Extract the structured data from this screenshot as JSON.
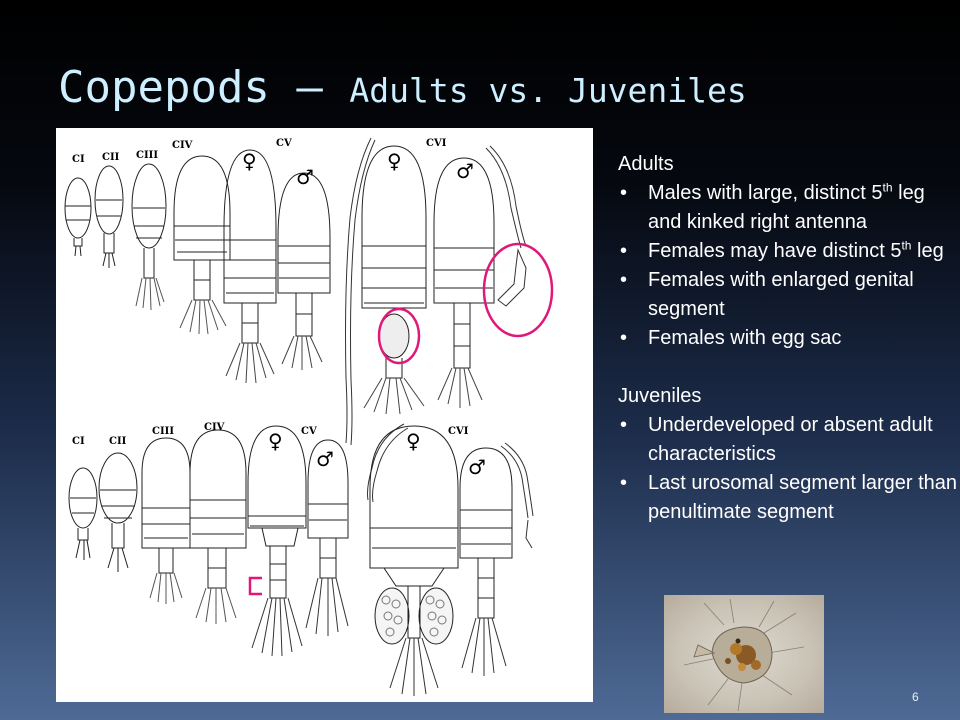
{
  "slide": {
    "title_main": "Copepods",
    "title_sep": " – ",
    "title_sub": "Adults vs. Juveniles",
    "page_number": "6"
  },
  "figure": {
    "top_row_labels": [
      "CI",
      "CII",
      "CIII",
      "CIV",
      "CV",
      "CVI"
    ],
    "bottom_row_labels": [
      "CI",
      "CII",
      "CIII",
      "CIV",
      "CV",
      "CVI"
    ],
    "female_symbol": "♀",
    "male_symbol": "♂",
    "highlight_color": "#e0187a"
  },
  "adults": {
    "heading": "Adults",
    "b1_text": "Males with large, distinct 5",
    "b1_sup": "th",
    "b1_rest": " leg and kinked right antenna",
    "b2_text": "Females may have distinct 5",
    "b2_sup": "th",
    "b2_rest": " leg",
    "b3": "Females with enlarged genital segment",
    "b4": "Females with egg sac"
  },
  "juveniles": {
    "heading": "Juveniles",
    "b1": "Underdeveloped or absent adult characteristics",
    "b2": "Last urosomal segment larger than penultimate segment"
  }
}
